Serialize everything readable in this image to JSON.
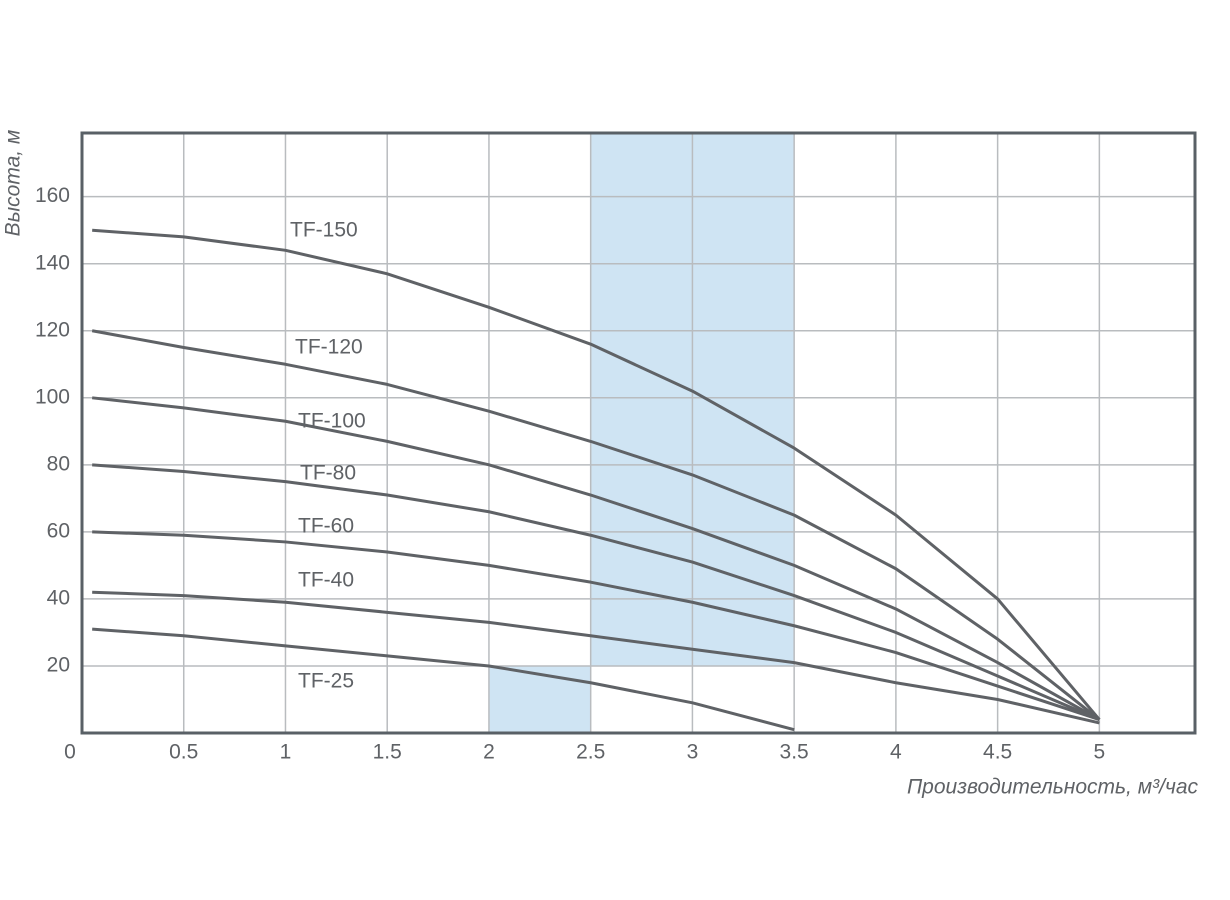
{
  "chart_data": {
    "type": "line",
    "xlabel": "Производительность, м³/час",
    "ylabel": "Высота, м",
    "x": [
      0.05,
      0.5,
      1,
      1.5,
      2,
      2.5,
      3,
      3.5,
      4,
      4.5,
      5
    ],
    "series": [
      {
        "name": "TF-150",
        "color": "#5f6266",
        "values": [
          150,
          148,
          144,
          137,
          127,
          116,
          102,
          85,
          65,
          40,
          4
        ]
      },
      {
        "name": "TF-120",
        "color": "#5f6266",
        "values": [
          120,
          115,
          110,
          104,
          96,
          87,
          77,
          65,
          49,
          28,
          4
        ]
      },
      {
        "name": "TF-100",
        "color": "#5f6266",
        "values": [
          100,
          97,
          93,
          87,
          80,
          71,
          61,
          50,
          37,
          21,
          4
        ]
      },
      {
        "name": "TF-80",
        "color": "#5f6266",
        "values": [
          80,
          78,
          75,
          71,
          66,
          59,
          51,
          41,
          30,
          17,
          4
        ]
      },
      {
        "name": "TF-60",
        "color": "#5f6266",
        "values": [
          60,
          59,
          57,
          54,
          50,
          45,
          39,
          32,
          24,
          14,
          4
        ]
      },
      {
        "name": "TF-40",
        "color": "#5f6266",
        "values": [
          42,
          41,
          39,
          36,
          33,
          29,
          25,
          21,
          15,
          10,
          3
        ]
      },
      {
        "name": "TF-25",
        "color": "#5f6266",
        "values": [
          31,
          29,
          26,
          23,
          20,
          15,
          9,
          1,
          null,
          null,
          null
        ]
      }
    ],
    "highlights": [
      {
        "x": [
          2.5,
          3.5
        ],
        "y": [
          20,
          179
        ],
        "color": "#cfe4f3"
      },
      {
        "x": [
          2,
          2.5
        ],
        "y": [
          0,
          20
        ],
        "color": "#cfe4f3"
      }
    ],
    "xlim": [
      0,
      5.47
    ],
    "ylim": [
      0,
      179
    ],
    "xticks": [
      0,
      0.5,
      1,
      1.5,
      2,
      2.5,
      3,
      3.5,
      4,
      4.5,
      5
    ],
    "yticks": [
      20,
      40,
      60,
      80,
      100,
      120,
      140,
      160
    ],
    "grid": true
  }
}
